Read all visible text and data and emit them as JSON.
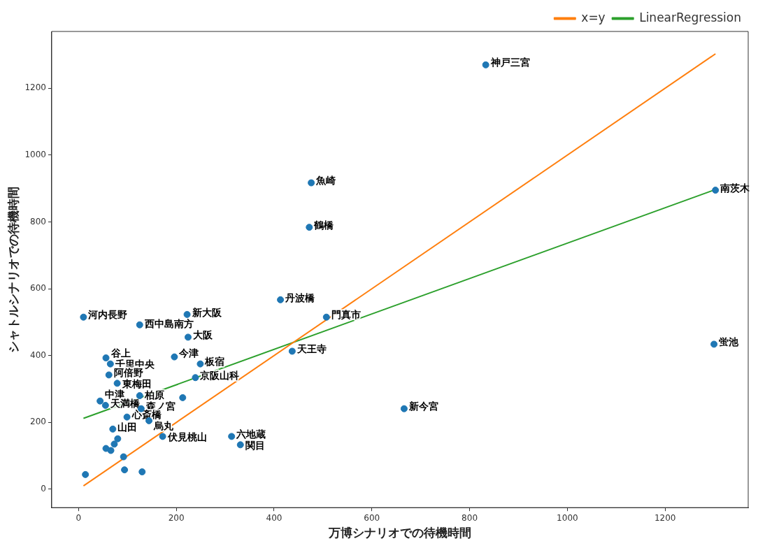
{
  "chart_data": {
    "type": "scatter",
    "xlabel": "万博シナリオでの待機時間",
    "ylabel": "シャトルシナリオでの待機時間",
    "xlim": [
      -55,
      1370
    ],
    "ylim": [
      -55,
      1370
    ],
    "xticks": [
      0,
      200,
      400,
      600,
      800,
      1000,
      1200
    ],
    "yticks": [
      0,
      200,
      400,
      600,
      800,
      1000,
      1200
    ],
    "grid": false,
    "legend": "top right",
    "series": [
      {
        "name": "x=y",
        "type": "line",
        "color": "#ff7f0e",
        "x": [
          10,
          1303
        ],
        "values": [
          10,
          1303
        ]
      },
      {
        "name": "LinearRegression",
        "type": "line",
        "color": "#2ca02c",
        "x": [
          10,
          1303
        ],
        "values": [
          212,
          897
        ]
      },
      {
        "marker": "circle",
        "color": "#1f77b4",
        "x": [
          833,
          476,
          472,
          1303,
          413,
          507,
          10,
          222,
          125,
          224,
          437,
          1300,
          196,
          56,
          65,
          249,
          239,
          62,
          79,
          125,
          213,
          44,
          55,
          128,
          99,
          144,
          70,
          172,
          313,
          331,
          666,
          56,
          66,
          73,
          80,
          92,
          14,
          94,
          130
        ],
        "values": [
          1270,
          917,
          784,
          895,
          567,
          515,
          515,
          523,
          492,
          455,
          413,
          434,
          396,
          393,
          375,
          375,
          334,
          342,
          317,
          280,
          274,
          264,
          251,
          241,
          216,
          205,
          180,
          158,
          158,
          133,
          241,
          122,
          116,
          135,
          151,
          97,
          44,
          58,
          52
        ]
      }
    ],
    "annotations": [
      {
        "text": "神戸三宮",
        "x": 833,
        "y": 1270
      },
      {
        "text": "魚崎",
        "x": 476,
        "y": 917
      },
      {
        "text": "鶴橋",
        "x": 472,
        "y": 784
      },
      {
        "text": "南茨木",
        "x": 1303,
        "y": 895
      },
      {
        "text": "丹波橋",
        "x": 413,
        "y": 567
      },
      {
        "text": "門真市",
        "x": 507,
        "y": 515
      },
      {
        "text": "河内長野",
        "x": 10,
        "y": 515
      },
      {
        "text": "新大阪",
        "x": 222,
        "y": 523
      },
      {
        "text": "西中島南方",
        "x": 125,
        "y": 492
      },
      {
        "text": "大阪",
        "x": 224,
        "y": 455
      },
      {
        "text": "天王寺",
        "x": 437,
        "y": 413
      },
      {
        "text": "蛍池",
        "x": 1300,
        "y": 434
      },
      {
        "text": "今津",
        "x": 196,
        "y": 396
      },
      {
        "text": "谷上",
        "x": 56,
        "y": 393
      },
      {
        "text": "千里中央",
        "x": 65,
        "y": 375
      },
      {
        "text": "板宿",
        "x": 249,
        "y": 375
      },
      {
        "text": "京阪山科",
        "x": 239,
        "y": 334
      },
      {
        "text": "阿倍野",
        "x": 62,
        "y": 342
      },
      {
        "text": "東梅田",
        "x": 79,
        "y": 317
      },
      {
        "text": "柏原",
        "x": 125,
        "y": 280
      },
      {
        "text": "中津",
        "x": 44,
        "y": 264
      },
      {
        "text": "天満橋",
        "x": 55,
        "y": 251
      },
      {
        "text": "森ノ宮",
        "x": 128,
        "y": 241
      },
      {
        "text": "心斎橋",
        "x": 99,
        "y": 216
      },
      {
        "text": "烏丸",
        "x": 144,
        "y": 205
      },
      {
        "text": "山田",
        "x": 70,
        "y": 180
      },
      {
        "text": "伏見桃山",
        "x": 172,
        "y": 158
      },
      {
        "text": "六地蔵",
        "x": 313,
        "y": 158
      },
      {
        "text": "関目",
        "x": 331,
        "y": 133
      },
      {
        "text": "新今宮",
        "x": 666,
        "y": 241
      }
    ]
  }
}
